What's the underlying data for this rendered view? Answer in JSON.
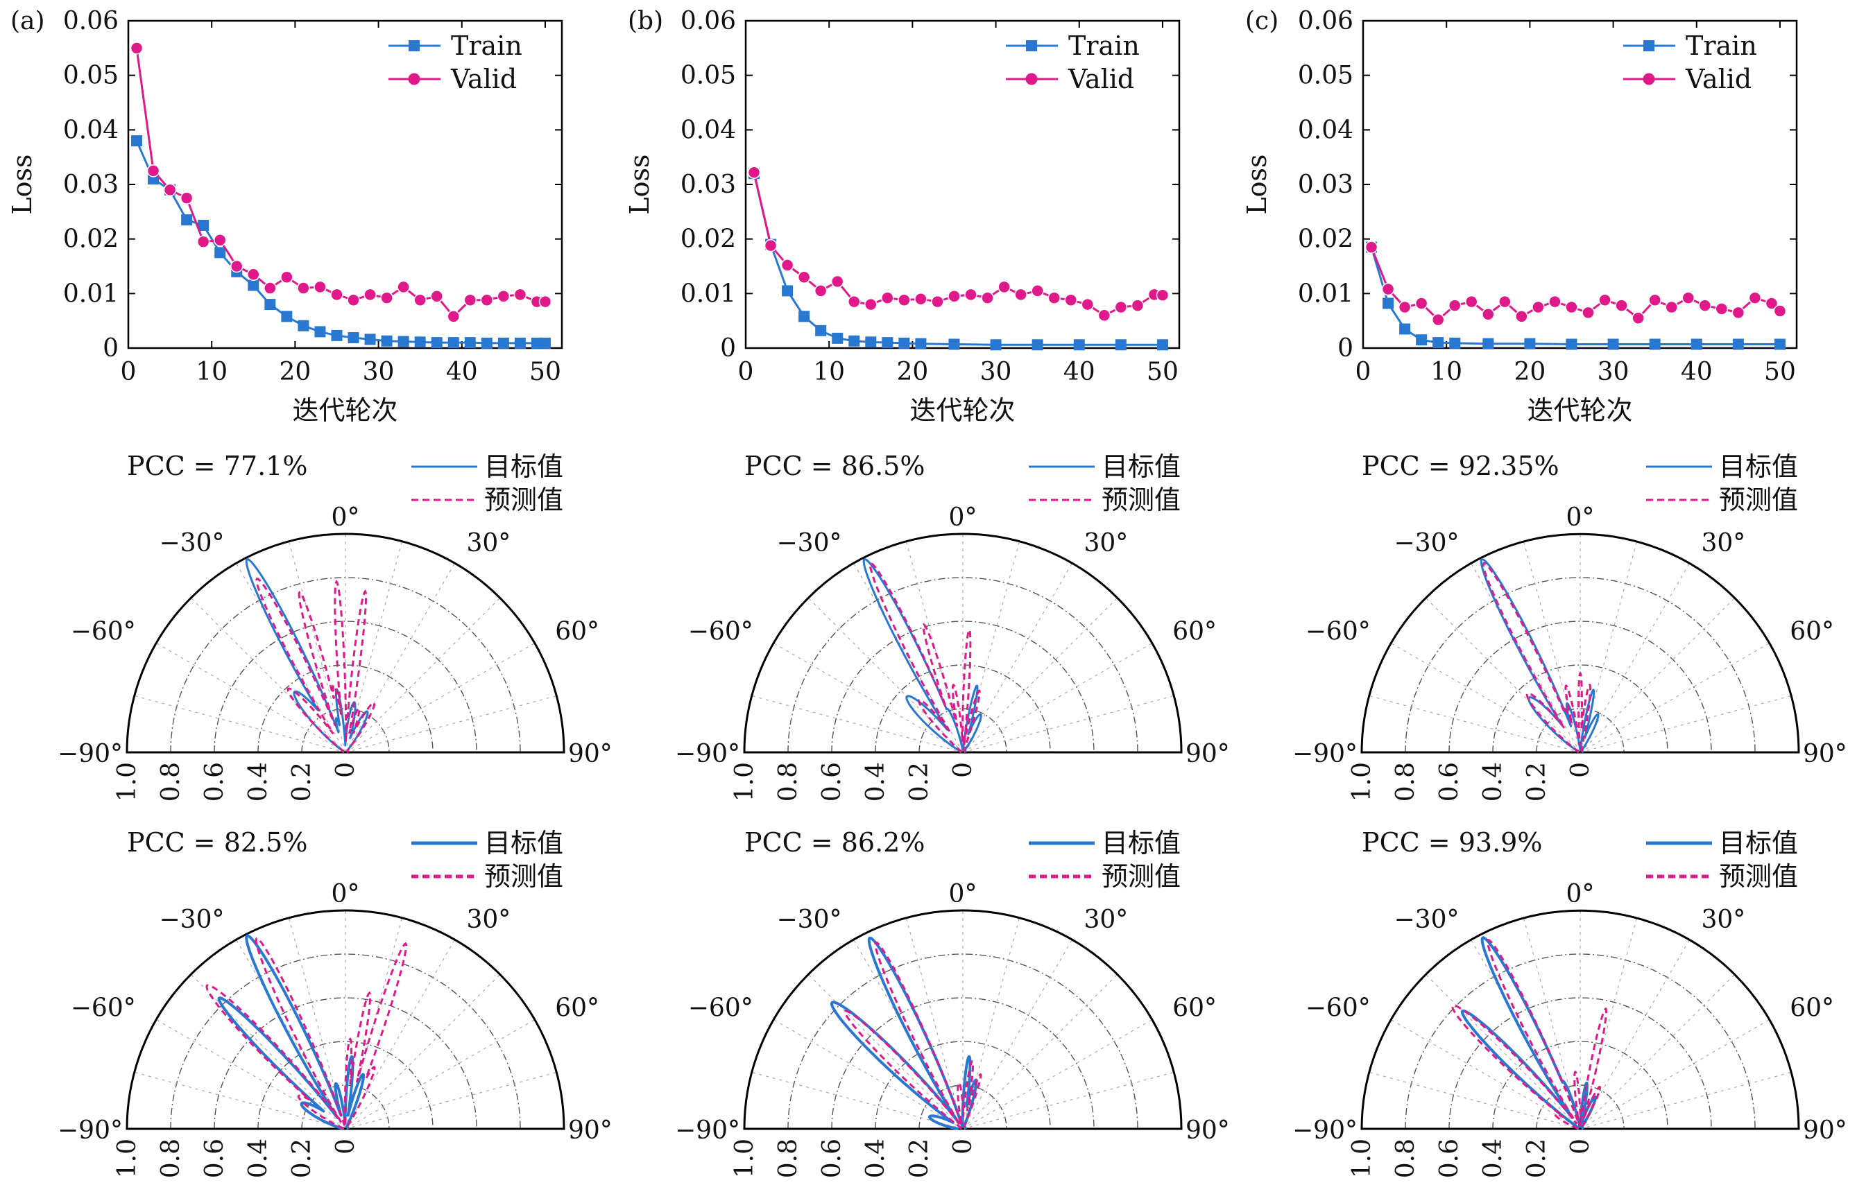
{
  "figure": {
    "colors": {
      "train": "#2878d2",
      "valid": "#e0198a",
      "target": "#2878d2",
      "predicted": "#e0198a",
      "axis": "#000000",
      "grid": "#555555"
    }
  },
  "chart_data": [
    {
      "type": "line",
      "panel_label": "(a)",
      "title": "",
      "xlabel": "迭代轮次",
      "ylabel": "Loss",
      "xlim": [
        0,
        52
      ],
      "ylim": [
        0,
        0.06
      ],
      "xticks": [
        "0",
        "10",
        "20",
        "30",
        "40",
        "50"
      ],
      "yticks": [
        "0",
        "0.01",
        "0.02",
        "0.03",
        "0.04",
        "0.05",
        "0.06"
      ],
      "legend": [
        "Train",
        "Valid"
      ],
      "legend_position": "top-right",
      "grid": false,
      "series": [
        {
          "name": "Train",
          "marker": "square",
          "x": [
            1,
            3,
            5,
            7,
            9,
            11,
            13,
            15,
            17,
            19,
            21,
            23,
            25,
            27,
            29,
            31,
            33,
            35,
            37,
            39,
            41,
            43,
            45,
            47,
            49,
            50
          ],
          "values": [
            0.038,
            0.031,
            0.029,
            0.0235,
            0.0225,
            0.0175,
            0.014,
            0.0115,
            0.008,
            0.0058,
            0.0041,
            0.003,
            0.0023,
            0.0019,
            0.0016,
            0.0013,
            0.0012,
            0.0011,
            0.001,
            0.001,
            0.001,
            0.0009,
            0.0009,
            0.0009,
            0.0009,
            0.0009
          ]
        },
        {
          "name": "Valid",
          "marker": "circle",
          "x": [
            1,
            3,
            5,
            7,
            9,
            11,
            13,
            15,
            17,
            19,
            21,
            23,
            25,
            27,
            29,
            31,
            33,
            35,
            37,
            39,
            41,
            43,
            45,
            47,
            49,
            50
          ],
          "values": [
            0.055,
            0.0325,
            0.029,
            0.0275,
            0.0195,
            0.0198,
            0.015,
            0.0135,
            0.011,
            0.013,
            0.011,
            0.0112,
            0.0098,
            0.0088,
            0.0098,
            0.0092,
            0.0112,
            0.0088,
            0.0095,
            0.0058,
            0.0088,
            0.0088,
            0.0095,
            0.0098,
            0.0085,
            0.0085
          ]
        }
      ]
    },
    {
      "type": "line",
      "panel_label": "(b)",
      "title": "",
      "xlabel": "迭代轮次",
      "ylabel": "Loss",
      "xlim": [
        0,
        52
      ],
      "ylim": [
        0,
        0.06
      ],
      "xticks": [
        "0",
        "10",
        "20",
        "30",
        "40",
        "50"
      ],
      "yticks": [
        "0",
        "0.01",
        "0.02",
        "0.03",
        "0.04",
        "0.05",
        "0.06"
      ],
      "legend": [
        "Train",
        "Valid"
      ],
      "legend_position": "top-right",
      "grid": false,
      "series": [
        {
          "name": "Train",
          "marker": "square",
          "x": [
            1,
            3,
            5,
            7,
            9,
            11,
            13,
            15,
            17,
            19,
            21,
            25,
            30,
            35,
            40,
            45,
            50
          ],
          "values": [
            0.032,
            0.019,
            0.0105,
            0.0058,
            0.0032,
            0.0018,
            0.0013,
            0.0011,
            0.001,
            0.0009,
            0.0008,
            0.0007,
            0.0006,
            0.0006,
            0.0006,
            0.0006,
            0.0006
          ]
        },
        {
          "name": "Valid",
          "marker": "circle",
          "x": [
            1,
            3,
            5,
            7,
            9,
            11,
            13,
            15,
            17,
            19,
            21,
            23,
            25,
            27,
            29,
            31,
            33,
            35,
            37,
            39,
            41,
            43,
            45,
            47,
            49,
            50
          ],
          "values": [
            0.0322,
            0.0188,
            0.0152,
            0.013,
            0.0105,
            0.0122,
            0.0085,
            0.008,
            0.0092,
            0.0088,
            0.009,
            0.0085,
            0.0095,
            0.0098,
            0.0092,
            0.0112,
            0.0098,
            0.0105,
            0.0092,
            0.0088,
            0.008,
            0.006,
            0.0075,
            0.0078,
            0.0098,
            0.0097
          ]
        }
      ]
    },
    {
      "type": "line",
      "panel_label": "(c)",
      "title": "",
      "xlabel": "迭代轮次",
      "ylabel": "Loss",
      "xlim": [
        0,
        52
      ],
      "ylim": [
        0,
        0.06
      ],
      "xticks": [
        "0",
        "10",
        "20",
        "30",
        "40",
        "50"
      ],
      "yticks": [
        "0",
        "0.01",
        "0.02",
        "0.03",
        "0.04",
        "0.05",
        "0.06"
      ],
      "legend": [
        "Train",
        "Valid"
      ],
      "legend_position": "top-right",
      "grid": false,
      "series": [
        {
          "name": "Train",
          "marker": "square",
          "x": [
            1,
            3,
            5,
            7,
            9,
            11,
            15,
            20,
            25,
            30,
            35,
            40,
            45,
            50
          ],
          "values": [
            0.0185,
            0.0082,
            0.0035,
            0.0015,
            0.001,
            0.0009,
            0.0008,
            0.0008,
            0.0007,
            0.0007,
            0.0007,
            0.0007,
            0.0007,
            0.0007
          ]
        },
        {
          "name": "Valid",
          "marker": "circle",
          "x": [
            1,
            3,
            5,
            7,
            9,
            11,
            13,
            15,
            17,
            19,
            21,
            23,
            25,
            27,
            29,
            31,
            33,
            35,
            37,
            39,
            41,
            43,
            45,
            47,
            49,
            50
          ],
          "values": [
            0.0185,
            0.0108,
            0.0075,
            0.0082,
            0.0052,
            0.0078,
            0.0085,
            0.0062,
            0.0085,
            0.0058,
            0.0075,
            0.0085,
            0.0075,
            0.0065,
            0.0088,
            0.0078,
            0.0055,
            0.0088,
            0.0075,
            0.0092,
            0.0078,
            0.0072,
            0.0065,
            0.0092,
            0.0082,
            0.0068
          ]
        }
      ]
    },
    {
      "type": "polar",
      "pcc": "PCC = 77.1%",
      "pcc_value": 77.1,
      "legend": [
        "目标值",
        "预测值"
      ],
      "legend_position": "top-right",
      "angle_ticks": [
        "−90°",
        "−60°",
        "−30°",
        "0°",
        "30°",
        "60°",
        "90°"
      ],
      "radial_ticks": [
        "1.0",
        "0.8",
        "0.6",
        "0.4",
        "0.2",
        "0"
      ],
      "rlim": [
        0,
        1.0
      ],
      "series": [
        {
          "name": "目标值",
          "lobes": [
            [
              -27,
              0.98,
              3.5
            ],
            [
              -40,
              0.35,
              7
            ],
            [
              -8,
              0.28,
              3
            ],
            [
              10,
              0.22,
              5
            ],
            [
              28,
              0.2,
              6
            ],
            [
              -15,
              0.15,
              4
            ]
          ]
        },
        {
          "name": "预测值",
          "lobes": [
            [
              -27,
              0.88,
              3
            ],
            [
              -16,
              0.75,
              2.5
            ],
            [
              -3,
              0.77,
              2
            ],
            [
              7,
              0.73,
              2
            ],
            [
              -42,
              0.38,
              5
            ],
            [
              30,
              0.25,
              5
            ],
            [
              17,
              0.2,
              4
            ],
            [
              -10,
              0.3,
              3
            ]
          ]
        }
      ]
    },
    {
      "type": "polar",
      "pcc": "PCC = 86.5%",
      "pcc_value": 86.5,
      "legend": [
        "目标值",
        "预测值"
      ],
      "legend_position": "top-right",
      "angle_ticks": [
        "−90°",
        "−60°",
        "−30°",
        "0°",
        "30°",
        "60°",
        "90°"
      ],
      "radial_ticks": [
        "1.0",
        "0.8",
        "0.6",
        "0.4",
        "0.2",
        "0"
      ],
      "rlim": [
        0,
        1.0
      ],
      "series": [
        {
          "name": "目标值",
          "lobes": [
            [
              -27,
              0.98,
              3.5
            ],
            [
              -45,
              0.35,
              7
            ],
            [
              -20,
              0.2,
              5
            ],
            [
              12,
              0.3,
              3
            ],
            [
              25,
              0.18,
              6
            ]
          ]
        },
        {
          "name": "预测值",
          "lobes": [
            [
              -26,
              0.95,
              3
            ],
            [
              -17,
              0.6,
              2.5
            ],
            [
              3,
              0.55,
              2
            ],
            [
              -8,
              0.3,
              3
            ],
            [
              15,
              0.28,
              3
            ],
            [
              -40,
              0.3,
              5
            ]
          ]
        }
      ]
    },
    {
      "type": "polar",
      "pcc": "PCC = 92.35%",
      "pcc_value": 92.35,
      "legend": [
        "目标值",
        "预测值"
      ],
      "legend_position": "top-right",
      "angle_ticks": [
        "−90°",
        "−60°",
        "−30°",
        "0°",
        "30°",
        "60°",
        "90°"
      ],
      "radial_ticks": [
        "1.0",
        "0.8",
        "0.6",
        "0.4",
        "0.2",
        "0"
      ],
      "rlim": [
        0,
        1.0
      ],
      "series": [
        {
          "name": "目标值",
          "lobes": [
            [
              -27,
              0.98,
              3.5
            ],
            [
              -43,
              0.33,
              7
            ],
            [
              -15,
              0.22,
              4
            ],
            [
              12,
              0.28,
              3
            ],
            [
              25,
              0.18,
              5
            ]
          ]
        },
        {
          "name": "预测值",
          "lobes": [
            [
              -27,
              0.96,
              3
            ],
            [
              -42,
              0.35,
              6
            ],
            [
              -12,
              0.3,
              3
            ],
            [
              0,
              0.35,
              2
            ],
            [
              8,
              0.3,
              3
            ],
            [
              -20,
              0.2,
              4
            ]
          ]
        }
      ]
    },
    {
      "type": "polar",
      "pcc": "PCC = 82.5%",
      "pcc_value": 82.5,
      "legend": [
        "目标值",
        "预测值"
      ],
      "legend_position": "top-right",
      "angle_ticks": [
        "−90°",
        "−60°",
        "−30°",
        "0°",
        "30°",
        "60°",
        "90°"
      ],
      "radial_ticks": [
        "1.0",
        "0.8",
        "0.6",
        "0.4",
        "0.2",
        "0"
      ],
      "rlim": [
        0,
        1.0
      ],
      "series": [
        {
          "name": "目标值",
          "lobes": [
            [
              -27,
              0.98,
              3.5
            ],
            [
              -44,
              0.82,
              3.5
            ],
            [
              -60,
              0.22,
              8
            ],
            [
              5,
              0.32,
              3
            ],
            [
              18,
              0.25,
              4
            ],
            [
              -12,
              0.2,
              4
            ]
          ]
        },
        {
          "name": "预测值",
          "lobes": [
            [
              -25,
              0.95,
              3
            ],
            [
              -44,
              0.9,
              4
            ],
            [
              18,
              0.88,
              2.5
            ],
            [
              10,
              0.62,
              2.5
            ],
            [
              -55,
              0.25,
              6
            ],
            [
              3,
              0.4,
              2.5
            ],
            [
              25,
              0.3,
              4
            ]
          ]
        }
      ]
    },
    {
      "type": "polar",
      "pcc": "PCC = 86.2%",
      "pcc_value": 86.2,
      "legend": [
        "目标值",
        "预测值"
      ],
      "legend_position": "top-right",
      "angle_ticks": [
        "−90°",
        "−60°",
        "−30°",
        "0°",
        "30°",
        "60°",
        "90°"
      ],
      "radial_ticks": [
        "1.0",
        "0.8",
        "0.6",
        "0.4",
        "0.2",
        "0"
      ],
      "rlim": [
        0,
        1.0
      ],
      "series": [
        {
          "name": "目标值",
          "lobes": [
            [
              -26,
              0.96,
              3.5
            ],
            [
              -46,
              0.82,
              4.5
            ],
            [
              -70,
              0.15,
              8
            ],
            [
              5,
              0.32,
              3
            ],
            [
              15,
              0.22,
              4
            ]
          ]
        },
        {
          "name": "预测值",
          "lobes": [
            [
              -25,
              0.93,
              3
            ],
            [
              -45,
              0.75,
              3.5
            ],
            [
              8,
              0.3,
              3
            ],
            [
              18,
              0.25,
              3
            ],
            [
              -5,
              0.2,
              4
            ]
          ]
        }
      ]
    },
    {
      "type": "polar",
      "pcc": "PCC = 93.9%",
      "pcc_value": 93.9,
      "legend": [
        "目标值",
        "预测值"
      ],
      "legend_position": "top-right",
      "angle_ticks": [
        "−90°",
        "−60°",
        "−30°",
        "0°",
        "30°",
        "60°",
        "90°"
      ],
      "radial_ticks": [
        "1.0",
        "0.8",
        "0.6",
        "0.4",
        "0.2",
        "0"
      ],
      "rlim": [
        0,
        1.0
      ],
      "series": [
        {
          "name": "目标值",
          "lobes": [
            [
              -27,
              0.97,
              3.5
            ],
            [
              -45,
              0.75,
              4
            ],
            [
              -20,
              0.22,
              4
            ],
            [
              8,
              0.2,
              3
            ],
            [
              25,
              0.15,
              5
            ]
          ]
        },
        {
          "name": "预测值",
          "lobes": [
            [
              -26,
              0.95,
              3
            ],
            [
              -46,
              0.8,
              4
            ],
            [
              12,
              0.55,
              2.5
            ],
            [
              -60,
              0.12,
              6
            ],
            [
              -5,
              0.25,
              3
            ],
            [
              25,
              0.2,
              4
            ]
          ]
        }
      ]
    }
  ]
}
